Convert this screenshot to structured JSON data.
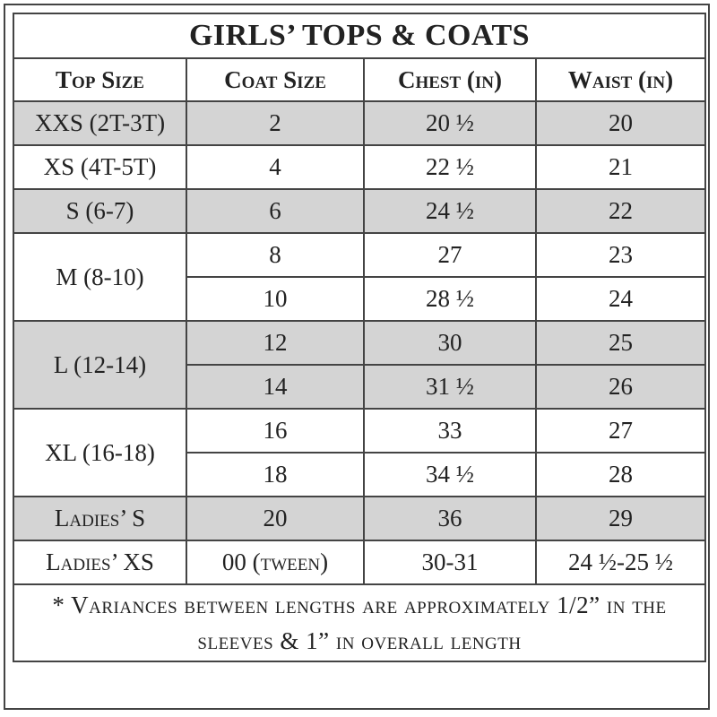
{
  "title": "GIRLS’ TOPS & COATS",
  "table": {
    "header": [
      "Top Size",
      "Coat Size",
      "Chest (in)",
      "Waist (in)"
    ],
    "groups": [
      {
        "top_size": "XXS (2T-3T)",
        "rows": [
          [
            "2",
            "20 ½",
            "20"
          ]
        ]
      },
      {
        "top_size": "XS (4T-5T)",
        "rows": [
          [
            "4",
            "22 ½",
            "21"
          ]
        ]
      },
      {
        "top_size": "S (6-7)",
        "rows": [
          [
            "6",
            "24 ½",
            "22"
          ]
        ]
      },
      {
        "top_size": "M (8-10)",
        "rows": [
          [
            "8",
            "27",
            "23"
          ],
          [
            "10",
            "28 ½",
            "24"
          ]
        ]
      },
      {
        "top_size": "L (12-14)",
        "rows": [
          [
            "12",
            "30",
            "25"
          ],
          [
            "14",
            "31 ½",
            "26"
          ]
        ]
      },
      {
        "top_size": "XL (16-18)",
        "rows": [
          [
            "16",
            "33",
            "27"
          ],
          [
            "18",
            "34 ½",
            "28"
          ]
        ]
      },
      {
        "top_size": "Ladies’ S",
        "rows": [
          [
            "20",
            "36",
            "29"
          ]
        ]
      },
      {
        "top_size": "Ladies’ XS",
        "rows": [
          [
            "00 (tween)",
            "30-31",
            "24 ½-25 ½"
          ]
        ]
      }
    ]
  },
  "footnote": "* Variances between lengths are approximately 1/2” in the sleeves & 1” in overall length"
}
